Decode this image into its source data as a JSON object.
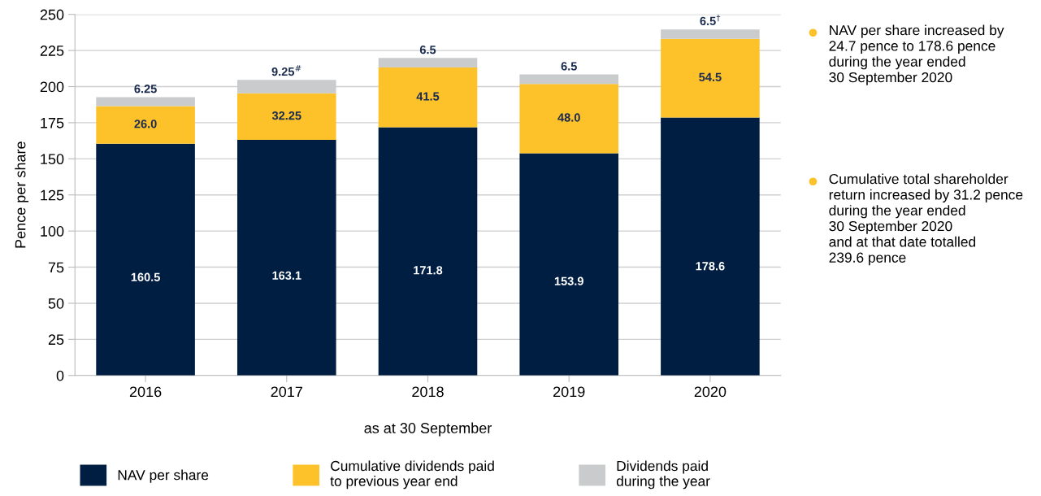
{
  "chart_data": {
    "type": "bar",
    "stacked": true,
    "xlabel": "as at 30 September",
    "ylabel": "Pence per share",
    "categories": [
      "2016",
      "2017",
      "2018",
      "2019",
      "2020"
    ],
    "series": [
      {
        "name": "NAV per share",
        "color": "#001e42",
        "values": [
          160.5,
          163.1,
          171.8,
          153.9,
          178.6
        ],
        "value_labels": [
          "160.5",
          "163.1",
          "171.8",
          "153.9",
          "178.6"
        ]
      },
      {
        "name": "Cumulative dividends paid\nto previous year end",
        "color": "#fdc12a",
        "values": [
          26.0,
          32.25,
          41.5,
          48.0,
          54.5
        ],
        "value_labels": [
          "26.0",
          "32.25",
          "41.5",
          "48.0",
          "54.5"
        ]
      },
      {
        "name": "Dividends paid\nduring the year",
        "color": "#c9cbcd",
        "values": [
          6.25,
          9.25,
          6.5,
          6.5,
          6.5
        ],
        "value_labels": [
          "6.25",
          "9.25$^{#}$",
          "6.5",
          "6.5",
          "6.5$^{†}$"
        ]
      }
    ],
    "ylim": [
      0,
      250
    ],
    "yticks": [
      0,
      25,
      50,
      75,
      100,
      125,
      150,
      175,
      200,
      225,
      250
    ],
    "grid": "y",
    "legend": "bottom",
    "annotations": [
      "NAV per share increased by\n24.7 pence to 178.6 pence\nduring the year ended\n30 September 2020",
      "Cumulative total shareholder\nreturn increased by 31.2 pence\nduring the year ended\n30 September 2020\nand at that date totalled\n239.6 pence"
    ]
  }
}
